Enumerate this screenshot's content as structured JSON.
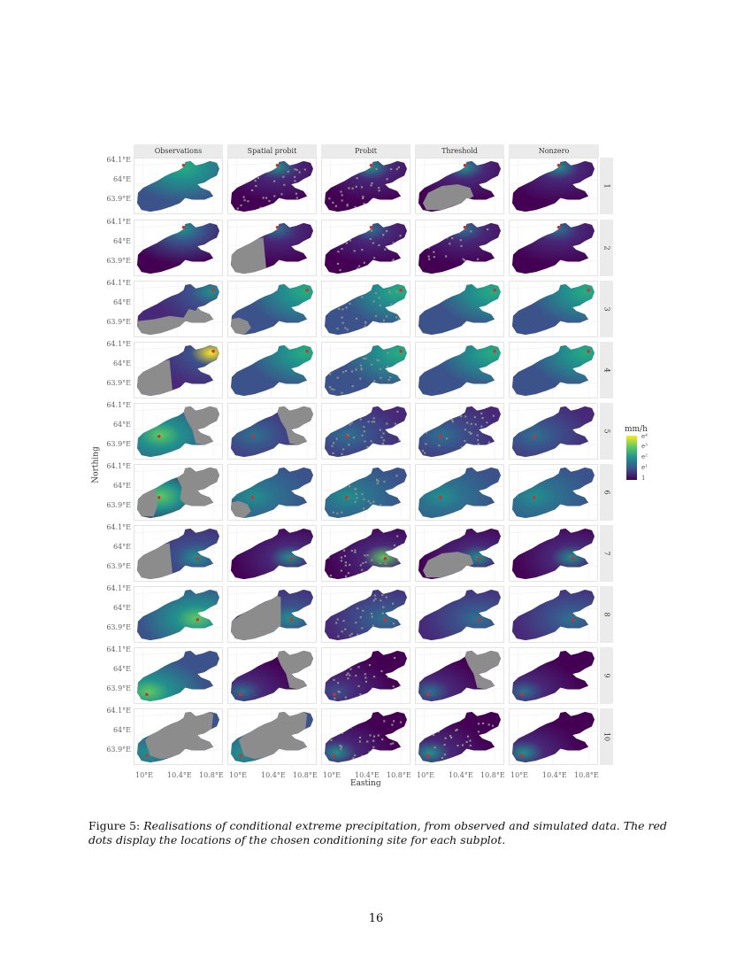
{
  "figure": {
    "columns": [
      "Observations",
      "Spatial probit",
      "Probit",
      "Threshold",
      "Nonzero"
    ],
    "rows": [
      "1",
      "2",
      "3",
      "4",
      "5",
      "6",
      "7",
      "8",
      "9",
      "10"
    ],
    "y_ticks": [
      "64.1°E",
      "64°E",
      "63.9°E"
    ],
    "x_ticks": [
      "10°E",
      "10.4°E",
      "10.8°E"
    ],
    "xlabel": "Easting",
    "ylabel": "Northing",
    "legend": {
      "title": "mm/h",
      "labels": [
        "e⁴",
        "e³",
        "e²",
        "e¹",
        "1"
      ],
      "colors": [
        "#fde725",
        "#5ec962",
        "#21908c",
        "#3b528b",
        "#440154"
      ]
    },
    "missing_color": "#8c8c8c",
    "site_color": "#e0282c"
  },
  "chart_data": {
    "type": "heatmap",
    "title": "Realisations of conditional extreme precipitation",
    "xlabel": "Easting",
    "ylabel": "Northing",
    "facet_columns": [
      "Observations",
      "Spatial probit",
      "Probit",
      "Threshold",
      "Nonzero"
    ],
    "facet_rows": [
      1,
      2,
      3,
      4,
      5,
      6,
      7,
      8,
      9,
      10
    ],
    "x_ticks": [
      "10°E",
      "10.4°E",
      "10.8°E"
    ],
    "y_ticks": [
      "63.9°E",
      "64°E",
      "64.1°E"
    ],
    "colorbar": {
      "label": "mm/h",
      "scale": "log",
      "ticks": [
        "1",
        "e¹",
        "e²",
        "e³",
        "e⁴"
      ]
    },
    "conditioning_site": "red dot",
    "legend_position": "right"
  },
  "caption": {
    "lead": "Figure 5:",
    "body": "Realisations of conditional extreme precipitation, from observed and simulated data. The red dots display the locations of the chosen conditioning site for each subplot."
  },
  "page_number": "16"
}
